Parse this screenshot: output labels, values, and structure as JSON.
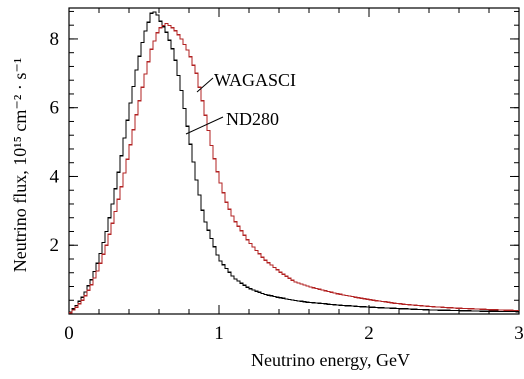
{
  "chart_data": {
    "type": "line",
    "title": "",
    "xlabel": "Neutrino energy, GeV",
    "ylabel": "Neutrino flux, 10¹⁵ cm⁻² · s⁻¹",
    "xlim": [
      0,
      3
    ],
    "ylim": [
      0,
      8.9
    ],
    "x_ticks": [
      0,
      1,
      2,
      3
    ],
    "y_ticks": [
      2,
      4,
      6,
      8
    ],
    "x_tick_labels": [
      "0",
      "1",
      "2",
      "3"
    ],
    "y_tick_labels": [
      "2",
      "4",
      "6",
      "8"
    ],
    "grid": false,
    "legend_position": "inline labels with leader lines",
    "series": [
      {
        "name": "ND280",
        "color": "#000000",
        "x": [
          0.0,
          0.05,
          0.1,
          0.15,
          0.2,
          0.25,
          0.3,
          0.35,
          0.4,
          0.45,
          0.5,
          0.55,
          0.58,
          0.6,
          0.65,
          0.7,
          0.75,
          0.8,
          0.85,
          0.9,
          1.0,
          1.1,
          1.2,
          1.3,
          1.4,
          1.5,
          1.6,
          1.8,
          2.0,
          2.2,
          2.4,
          2.6,
          2.8,
          3.0
        ],
        "y": [
          0.0,
          0.25,
          0.55,
          1.0,
          1.6,
          2.4,
          3.4,
          4.6,
          5.9,
          7.1,
          8.1,
          8.75,
          8.8,
          8.6,
          8.2,
          7.6,
          6.5,
          5.2,
          3.9,
          2.8,
          1.6,
          1.05,
          0.75,
          0.58,
          0.48,
          0.4,
          0.34,
          0.26,
          0.2,
          0.16,
          0.12,
          0.1,
          0.08,
          0.07
        ]
      },
      {
        "name": "WAGASCI",
        "color": "#b22222",
        "x": [
          0.0,
          0.05,
          0.1,
          0.15,
          0.2,
          0.25,
          0.3,
          0.35,
          0.4,
          0.45,
          0.5,
          0.55,
          0.6,
          0.65,
          0.7,
          0.75,
          0.8,
          0.85,
          0.9,
          0.95,
          1.0,
          1.05,
          1.1,
          1.2,
          1.3,
          1.4,
          1.5,
          1.6,
          1.8,
          2.0,
          2.2,
          2.4,
          2.6,
          2.8,
          3.0
        ],
        "y": [
          0.0,
          0.2,
          0.45,
          0.85,
          1.35,
          2.0,
          2.8,
          3.7,
          4.7,
          5.8,
          6.8,
          7.7,
          8.3,
          8.45,
          8.3,
          8.0,
          7.6,
          7.0,
          6.0,
          4.9,
          3.95,
          3.25,
          2.75,
          2.1,
          1.6,
          1.25,
          0.95,
          0.8,
          0.58,
          0.42,
          0.3,
          0.22,
          0.17,
          0.13,
          0.1
        ]
      }
    ]
  }
}
